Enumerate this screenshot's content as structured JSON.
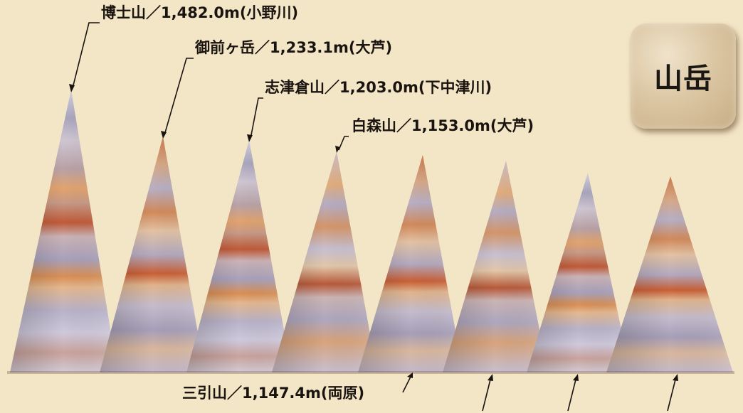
{
  "badge": {
    "text": "山岳"
  },
  "peaks": [
    {
      "name": "博士山",
      "elevation": "1,482.0m",
      "area": "小野川",
      "text": "博士山／1,482.0m(小野川)"
    },
    {
      "name": "御前ヶ岳",
      "elevation": "1,233.1m",
      "area": "大芦",
      "text": "御前ヶ岳／1,233.1m(大芦)"
    },
    {
      "name": "志津倉山",
      "elevation": "1,203.0m",
      "area": "下中津川",
      "text": "志津倉山／1,203.0m(下中津川)"
    },
    {
      "name": "白森山",
      "elevation": "1,153.0m",
      "area": "大芦",
      "text": "白森山／1,153.0m(大芦)"
    },
    {
      "name": "三引山",
      "elevation": "1,147.4m",
      "area": "両原",
      "text": "三引山／1,147.4m(両原)"
    }
  ],
  "colors": {
    "background": "#f3e6c6",
    "stone_light": "#c9c6d8",
    "stone_warm": "#d98c52",
    "stone_red": "#b8412a",
    "label_text": "#1a1410",
    "leader_line": "#1a1410"
  }
}
